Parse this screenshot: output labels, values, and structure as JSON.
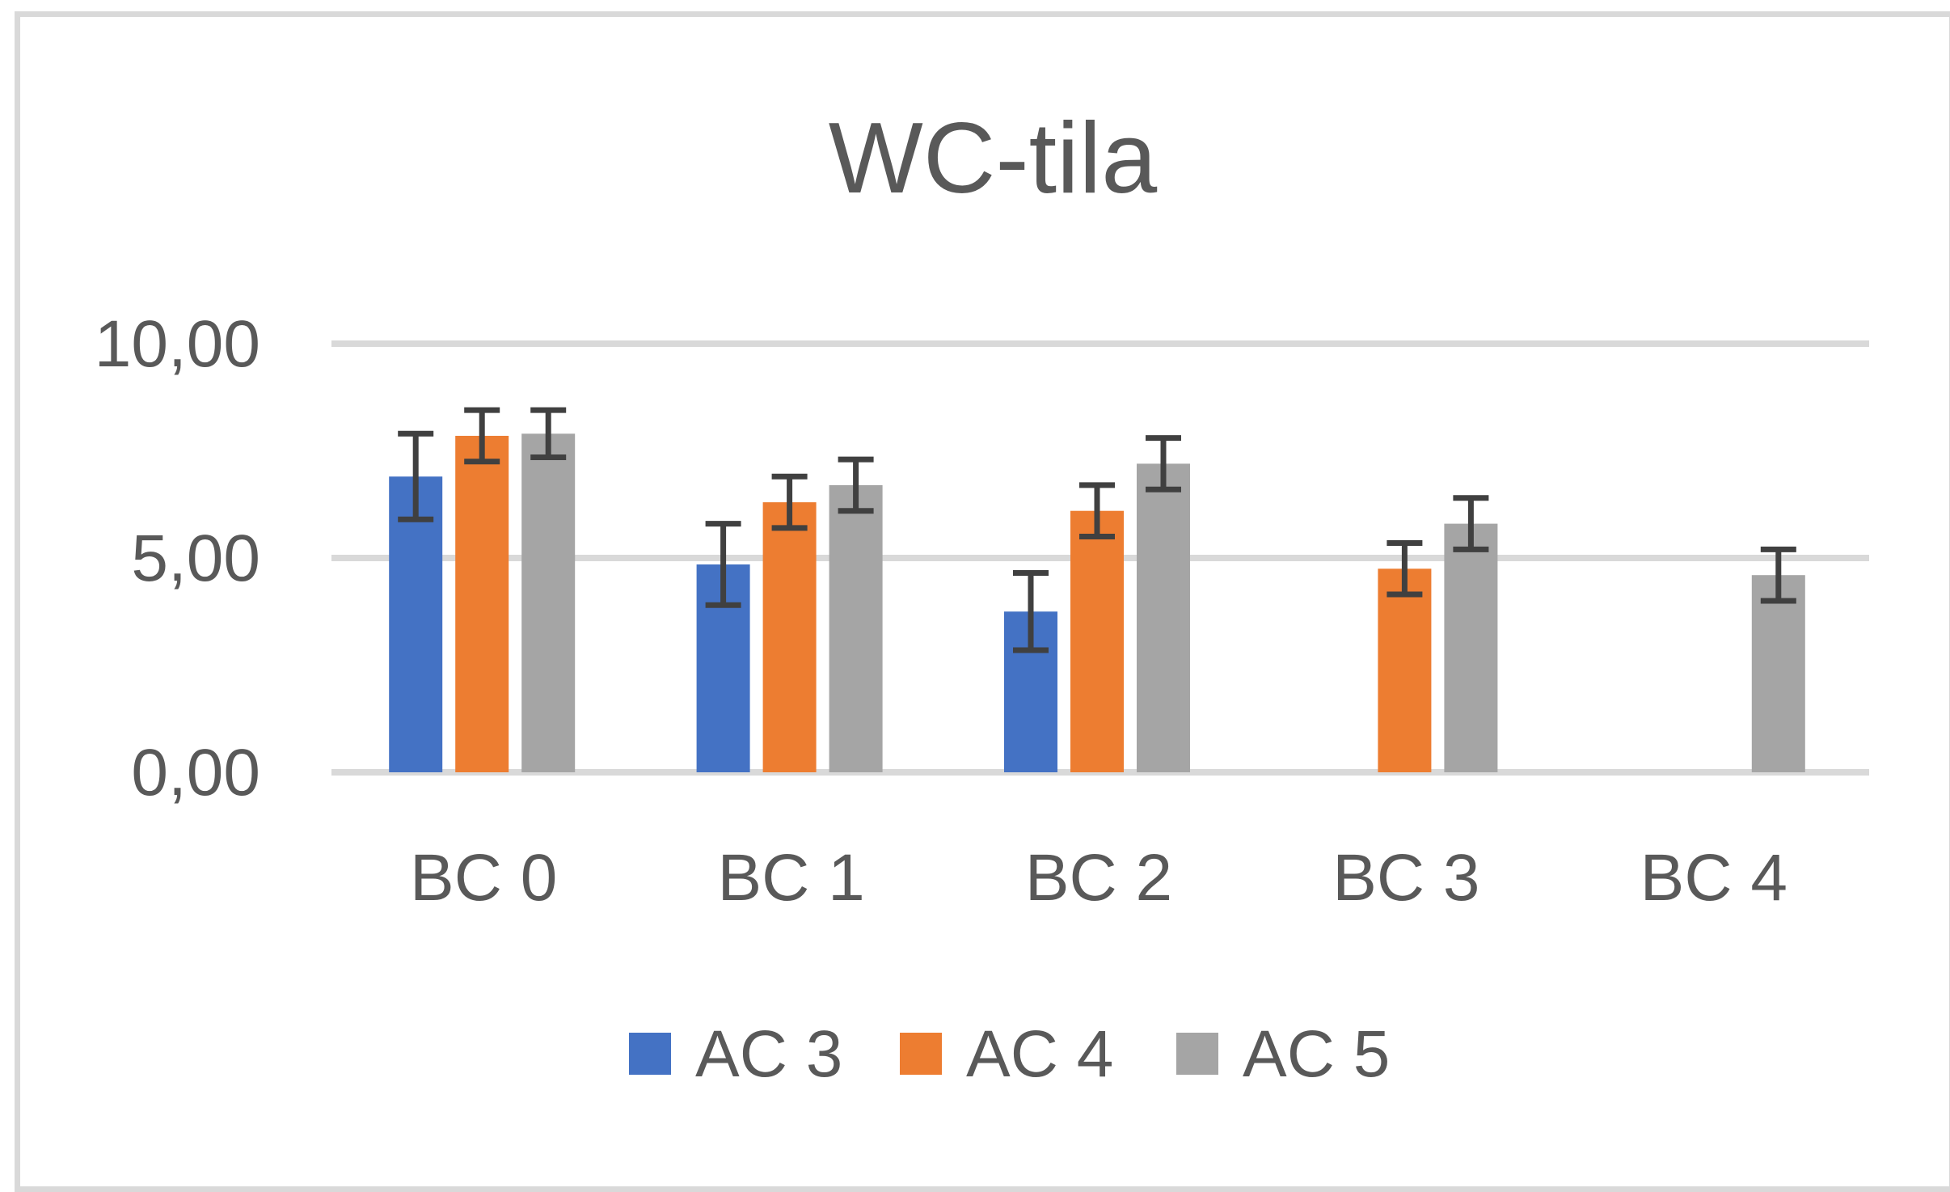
{
  "chart_data": {
    "type": "bar",
    "title": "WC-tila",
    "xlabel": "",
    "ylabel": "",
    "categories": [
      "BC 0",
      "BC 1",
      "BC 2",
      "BC 3",
      "BC 4"
    ],
    "series": [
      {
        "name": "AC 3",
        "color": "#4472c4",
        "values": [
          6.9,
          4.85,
          3.75,
          null,
          null
        ],
        "error": [
          1.0,
          0.95,
          0.9,
          null,
          null
        ]
      },
      {
        "name": "AC 4",
        "color": "#ed7d31",
        "values": [
          7.85,
          6.3,
          6.1,
          4.75,
          null
        ],
        "error": [
          0.6,
          0.6,
          0.6,
          0.6,
          null
        ]
      },
      {
        "name": "AC 5",
        "color": "#a5a5a5",
        "values": [
          7.9,
          6.7,
          7.2,
          5.8,
          4.6
        ],
        "error": [
          0.55,
          0.6,
          0.6,
          0.6,
          0.6
        ]
      }
    ],
    "ylim": [
      0,
      10
    ],
    "yticks": [
      "0,00",
      "5,00",
      "10,00"
    ],
    "grid": true,
    "legend": "bottom",
    "error_bar_color": "#404040",
    "gridline_color": "#d9d9d9"
  }
}
